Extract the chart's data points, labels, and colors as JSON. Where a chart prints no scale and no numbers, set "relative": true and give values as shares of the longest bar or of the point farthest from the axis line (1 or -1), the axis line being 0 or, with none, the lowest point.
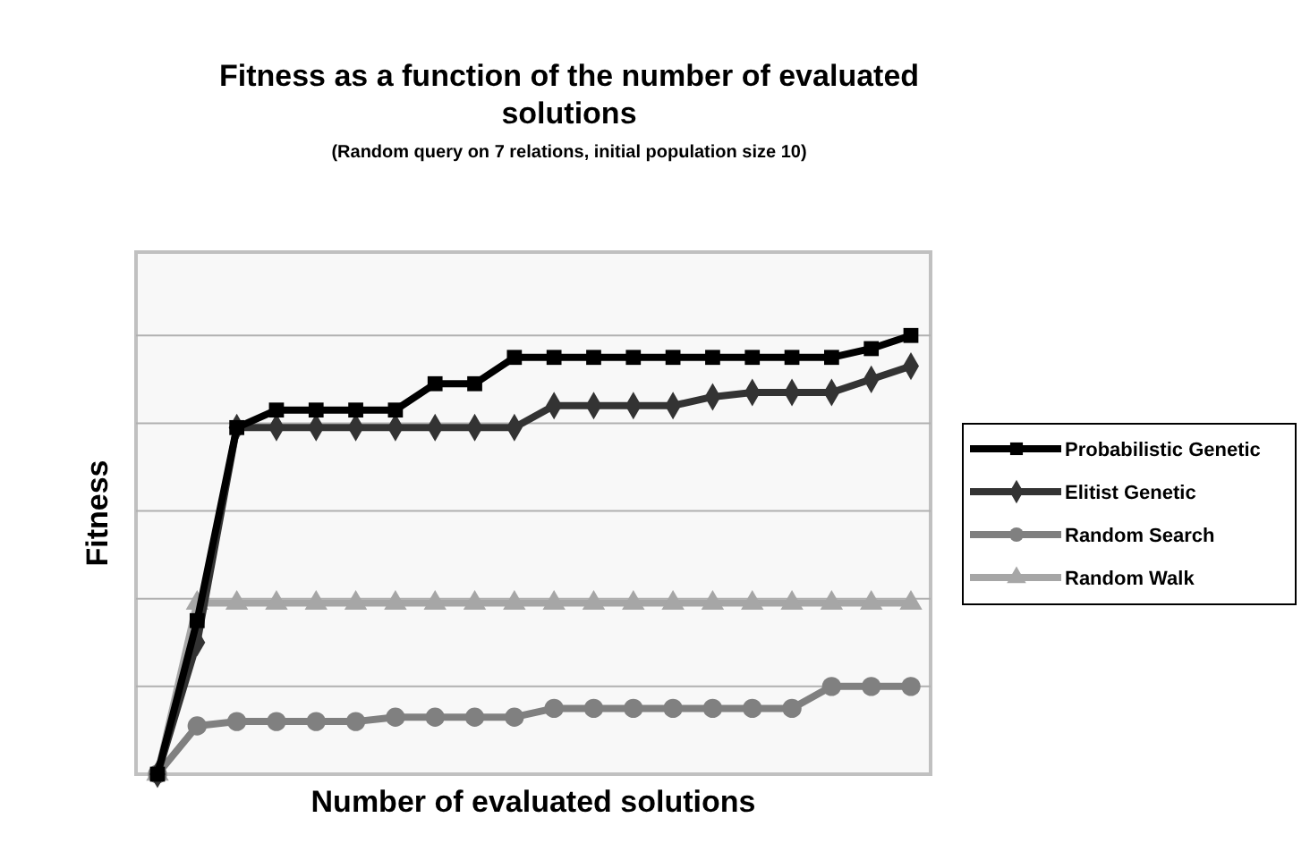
{
  "chart_data": {
    "type": "line",
    "relative": true,
    "title": "Fitness as a function of the number of evaluated solutions",
    "subtitle": "(Random query on 7 relations, initial population size 10)",
    "xlabel": "Number of evaluated solutions",
    "ylabel": "Fitness",
    "grid": "y",
    "legend": "right",
    "line_style": "solid",
    "categories": [
      null,
      null,
      null,
      null,
      null,
      null,
      null,
      null,
      null,
      null,
      null,
      null,
      null,
      null,
      null,
      null,
      null,
      null,
      null,
      null
    ],
    "series": [
      {
        "name": "Probabilistic Genetic",
        "color": "#000000",
        "marker": "square",
        "values": [
          0,
          0.35,
          0.79,
          0.83,
          0.83,
          0.83,
          0.83,
          0.89,
          0.89,
          0.95,
          0.95,
          0.95,
          0.95,
          0.95,
          0.95,
          0.95,
          0.95,
          0.95,
          0.97,
          1
        ]
      },
      {
        "name": "Elitist Genetic",
        "color": "#333333",
        "marker": "diamond",
        "values": [
          0,
          0.3,
          0.79,
          0.79,
          0.79,
          0.79,
          0.79,
          0.79,
          0.79,
          0.79,
          0.84,
          0.84,
          0.84,
          0.84,
          0.86,
          0.87,
          0.87,
          0.87,
          0.9,
          0.93
        ]
      },
      {
        "name": "Random Search",
        "color": "#808080",
        "marker": "circle",
        "values": [
          0,
          0.11,
          0.12,
          0.12,
          0.12,
          0.12,
          0.13,
          0.13,
          0.13,
          0.13,
          0.15,
          0.15,
          0.15,
          0.15,
          0.15,
          0.15,
          0.15,
          0.2,
          0.2,
          0.2
        ]
      },
      {
        "name": "Random Walk",
        "color": "#a6a6a6",
        "marker": "triangle",
        "values": [
          0,
          0.39,
          0.39,
          0.39,
          0.39,
          0.39,
          0.39,
          0.39,
          0.39,
          0.39,
          0.39,
          0.39,
          0.39,
          0.39,
          0.39,
          0.39,
          0.39,
          0.39,
          0.39,
          0.39
        ]
      }
    ]
  }
}
